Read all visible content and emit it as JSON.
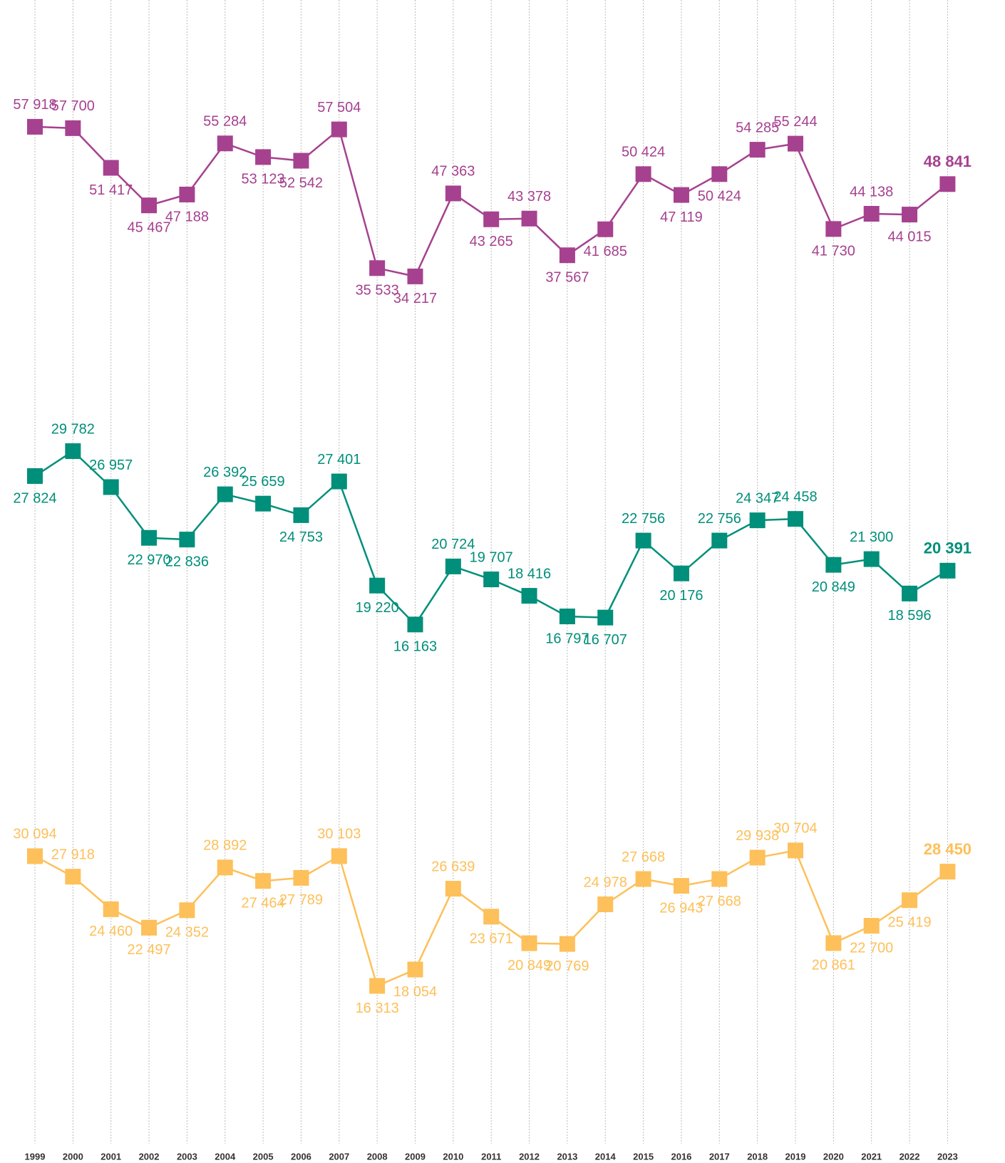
{
  "chart_data": [
    {
      "type": "line",
      "color": "#a6418f",
      "categories": [
        "1999",
        "2000",
        "2001",
        "2002",
        "2003",
        "2004",
        "2005",
        "2006",
        "2007",
        "2008",
        "2009",
        "2010",
        "2011",
        "2012",
        "2013",
        "2014",
        "2015",
        "2016",
        "2017",
        "2018",
        "2019",
        "2020",
        "2021",
        "2022",
        "2023"
      ],
      "values": [
        57918,
        57700,
        51417,
        45467,
        47188,
        55284,
        53123,
        52542,
        57504,
        35533,
        34217,
        47363,
        43265,
        43378,
        37567,
        41685,
        50424,
        47119,
        50424,
        54285,
        55244,
        41730,
        44138,
        44015,
        48841
      ],
      "value_labels": [
        "57 918",
        "57 700",
        "51 417",
        "45 467",
        "47 188",
        "55 284",
        "53 123",
        "52 542",
        "57 504",
        "35 533",
        "34 217",
        "47 363",
        "43 265",
        "43 378",
        "37 567",
        "41 685",
        "50 424",
        "47 119",
        "50 424",
        "54 285",
        "55 244",
        "41 730",
        "44 138",
        "44 015",
        "48 841"
      ],
      "ylim": [
        14000,
        78000
      ]
    },
    {
      "type": "line",
      "color": "#008f7a",
      "categories": [
        "1999",
        "2000",
        "2001",
        "2002",
        "2003",
        "2004",
        "2005",
        "2006",
        "2007",
        "2008",
        "2009",
        "2010",
        "2011",
        "2012",
        "2013",
        "2014",
        "2015",
        "2016",
        "2017",
        "2018",
        "2019",
        "2020",
        "2021",
        "2022",
        "2023"
      ],
      "values": [
        27824,
        29782,
        26957,
        22970,
        22836,
        26392,
        25659,
        24753,
        27401,
        19220,
        16163,
        20724,
        19707,
        18416,
        16797,
        16707,
        22756,
        20176,
        22756,
        24347,
        24458,
        20849,
        21300,
        18596,
        20391
      ],
      "value_labels": [
        "27 824",
        "29 782",
        "26 957",
        "22 970",
        "22 836",
        "26 392",
        "25 659",
        "24 753",
        "27 401",
        "19 220",
        "16 163",
        "20 724",
        "19 707",
        "18 416",
        "16 797",
        "16 707",
        "22 756",
        "20 176",
        "22 756",
        "24 347",
        "24 458",
        "20 849",
        "21 300",
        "18 596",
        "20 391"
      ],
      "ylim": [
        7000,
        36000
      ]
    },
    {
      "type": "line",
      "color": "#fdc05a",
      "categories": [
        "1999",
        "2000",
        "2001",
        "2002",
        "2003",
        "2004",
        "2005",
        "2006",
        "2007",
        "2008",
        "2009",
        "2010",
        "2011",
        "2012",
        "2013",
        "2014",
        "2015",
        "2016",
        "2017",
        "2018",
        "2019",
        "2020",
        "2021",
        "2022",
        "2023"
      ],
      "values": [
        30094,
        27918,
        24460,
        22497,
        24352,
        28892,
        27464,
        27789,
        30103,
        16313,
        18054,
        26639,
        23671,
        20849,
        20769,
        24978,
        27668,
        26943,
        27668,
        29938,
        30704,
        20861,
        22700,
        25419,
        28450
      ],
      "value_labels": [
        "30 094",
        "27 918",
        "24 460",
        "22 497",
        "24 352",
        "28 892",
        "27 464",
        "27 789",
        "30 103",
        "16 313",
        "18 054",
        "26 639",
        "23 671",
        "20 849",
        "20 769",
        "24 978",
        "27 668",
        "26 943",
        "27 668",
        "29 938",
        "30 704",
        "20 861",
        "22 700",
        "25 419",
        "28 450"
      ],
      "ylim": [
        0,
        38000
      ]
    }
  ]
}
